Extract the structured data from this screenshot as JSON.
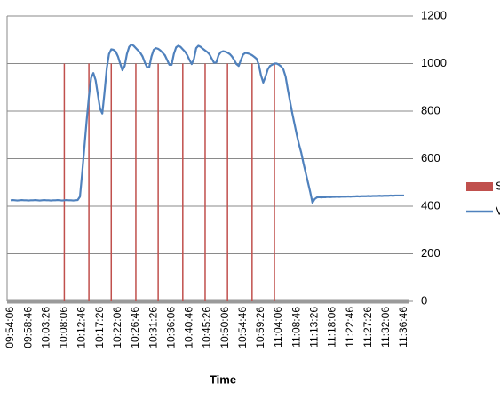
{
  "chart_data": {
    "type": "combo",
    "x_label": "Time",
    "legend": "right",
    "grid": true,
    "categories": [
      "09:54:06",
      null,
      null,
      null,
      null,
      null,
      null,
      null,
      "09:58:46",
      null,
      null,
      null,
      null,
      null,
      null,
      null,
      "10:03:26",
      null,
      null,
      null,
      null,
      null,
      null,
      null,
      "10:08:06",
      null,
      null,
      null,
      null,
      null,
      null,
      null,
      "10:12:46",
      null,
      null,
      null,
      null,
      null,
      null,
      null,
      "10:17:26",
      null,
      null,
      null,
      null,
      null,
      null,
      null,
      "10:22:06",
      null,
      null,
      null,
      null,
      null,
      null,
      null,
      "10:26:46",
      null,
      null,
      null,
      null,
      null,
      null,
      null,
      "10:31:26",
      null,
      null,
      null,
      null,
      null,
      null,
      null,
      "10:36:06",
      null,
      null,
      null,
      null,
      null,
      null,
      null,
      "10:40:46",
      null,
      null,
      null,
      null,
      null,
      null,
      null,
      "10:45:26",
      null,
      null,
      null,
      null,
      null,
      null,
      null,
      "10:50:06",
      null,
      null,
      null,
      null,
      null,
      null,
      null,
      "10:54:46",
      null,
      null,
      null,
      null,
      null,
      null,
      null,
      "10:59:26",
      null,
      null,
      null,
      null,
      null,
      null,
      null,
      "11:04:06",
      null,
      null,
      null,
      null,
      null,
      null,
      null,
      "11:08:46",
      null,
      null,
      null,
      null,
      null,
      null,
      null,
      "11:13:26",
      null,
      null,
      null,
      null,
      null,
      null,
      null,
      "11:18:06",
      null,
      null,
      null,
      null,
      null,
      null,
      null,
      "11:22:46",
      null,
      null,
      null,
      null,
      null,
      null,
      null,
      "11:27:26",
      null,
      null,
      null,
      null,
      null,
      null,
      null,
      "11:32:06",
      null,
      null,
      null,
      null,
      null,
      null,
      null,
      "11:36:46"
    ],
    "series": [
      {
        "name": "S",
        "type": "bar",
        "color": "#c0504d",
        "values": [
          null,
          null,
          null,
          null,
          null,
          null,
          null,
          null,
          null,
          null,
          null,
          null,
          null,
          null,
          null,
          null,
          null,
          null,
          null,
          null,
          null,
          null,
          null,
          null,
          1000,
          null,
          null,
          null,
          null,
          null,
          null,
          null,
          null,
          null,
          null,
          1000,
          null,
          null,
          null,
          null,
          null,
          null,
          null,
          null,
          null,
          1000,
          null,
          null,
          null,
          null,
          null,
          null,
          null,
          null,
          null,
          null,
          1000,
          null,
          null,
          null,
          null,
          null,
          null,
          null,
          null,
          null,
          1000,
          null,
          null,
          null,
          null,
          null,
          null,
          null,
          null,
          null,
          null,
          1000,
          null,
          null,
          null,
          null,
          null,
          null,
          null,
          null,
          null,
          1000,
          null,
          null,
          null,
          null,
          null,
          null,
          null,
          null,
          null,
          1000,
          null,
          null,
          null,
          null,
          null,
          null,
          null,
          null,
          null,
          null,
          1000,
          null,
          null,
          null,
          null,
          null,
          null,
          null,
          null,
          null,
          1000,
          null,
          null,
          null,
          null,
          null,
          null,
          null,
          null,
          null,
          null,
          null,
          null,
          null,
          null,
          null,
          null,
          null,
          null,
          null,
          null,
          null,
          null,
          null,
          null,
          null,
          null,
          null,
          null,
          null,
          null,
          null,
          null,
          null,
          null,
          null,
          null,
          null,
          null,
          null,
          null,
          null,
          null,
          null,
          null,
          null,
          null,
          null,
          null,
          null,
          null,
          null,
          null,
          null,
          null,
          null,
          null,
          null,
          null
        ]
      },
      {
        "name": "V",
        "type": "line",
        "color": "#4f81bd",
        "values": [
          425,
          426,
          425,
          424,
          425,
          426,
          425,
          425,
          424,
          425,
          425,
          426,
          425,
          424,
          425,
          426,
          425,
          425,
          424,
          425,
          425,
          426,
          425,
          424,
          425,
          426,
          425,
          425,
          424,
          425,
          426,
          440,
          540,
          650,
          760,
          860,
          940,
          960,
          930,
          870,
          810,
          790,
          880,
          980,
          1040,
          1060,
          1058,
          1050,
          1030,
          1000,
          972,
          990,
          1040,
          1070,
          1080,
          1075,
          1065,
          1055,
          1045,
          1030,
          1005,
          985,
          985,
          1030,
          1058,
          1065,
          1062,
          1055,
          1045,
          1035,
          1015,
          995,
          995,
          1040,
          1068,
          1075,
          1070,
          1060,
          1050,
          1035,
          1015,
          998,
          1020,
          1065,
          1075,
          1070,
          1062,
          1055,
          1048,
          1038,
          1020,
          1003,
          1005,
          1035,
          1048,
          1052,
          1050,
          1046,
          1040,
          1030,
          1015,
          998,
          990,
          1015,
          1038,
          1045,
          1043,
          1040,
          1035,
          1028,
          1020,
          995,
          950,
          920,
          945,
          975,
          990,
          995,
          1000,
          1000,
          995,
          988,
          975,
          945,
          890,
          840,
          790,
          745,
          700,
          660,
          625,
          580,
          540,
          500,
          460,
          415,
          430,
          437,
          438,
          437,
          438,
          438,
          439,
          438,
          439,
          439,
          440,
          439,
          440,
          440,
          440,
          441,
          440,
          441,
          441,
          442,
          441,
          442,
          442,
          442,
          443,
          442,
          443,
          443,
          443,
          444,
          443,
          444,
          444,
          444,
          445,
          444,
          445,
          445,
          445,
          445,
          445
        ]
      }
    ],
    "ylim": [
      0,
      1200
    ],
    "yticks": [
      0,
      200,
      400,
      600,
      800,
      1000,
      1200
    ]
  }
}
